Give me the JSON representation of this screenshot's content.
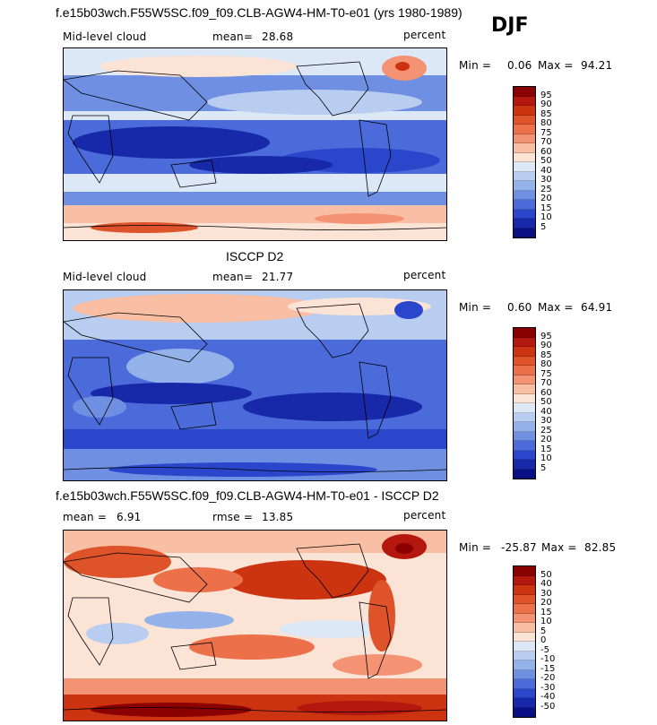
{
  "season": "DJF",
  "panels": [
    {
      "title": "f.e15b03wch.F55W5SC.f09_f09.CLB-AGW4-HM-T0-e01 (yrs 1980-1989)",
      "variable": "Mid-level cloud",
      "mean_label": "mean=",
      "mean": "28.68",
      "units": "percent",
      "min_label": "Min =",
      "min": "0.06",
      "max_label": "Max =",
      "max": "94.21"
    },
    {
      "title": "ISCCP D2",
      "variable": "Mid-level cloud",
      "mean_label": "mean=",
      "mean": "21.77",
      "units": "percent",
      "min_label": "Min =",
      "min": "0.60",
      "max_label": "Max =",
      "max": "64.91"
    },
    {
      "title": "f.e15b03wch.F55W5SC.f09_f09.CLB-AGW4-HM-T0-e01 - ISCCP D2",
      "variable": "",
      "mean_label": "mean =",
      "mean": "6.91",
      "rmse_label": "rmse =",
      "rmse": "13.85",
      "units": "percent",
      "min_label": "Min =",
      "min": "-25.87",
      "max_label": "Max =",
      "max": "82.85"
    }
  ],
  "colorbar_abs": {
    "labels": [
      "95",
      "90",
      "85",
      "80",
      "75",
      "70",
      "60",
      "50",
      "40",
      "30",
      "25",
      "20",
      "15",
      "10",
      "5"
    ],
    "colors": [
      "#8b0000",
      "#b3170d",
      "#cc3311",
      "#de5329",
      "#ec7049",
      "#f49373",
      "#f9bfa4",
      "#fbe3d6",
      "#dde8f7",
      "#b8cdf0",
      "#94b2ea",
      "#6f8fe2",
      "#4b6bdb",
      "#2a47cc",
      "#1728a8",
      "#0a0f86"
    ]
  },
  "colorbar_diff": {
    "labels": [
      "50",
      "40",
      "30",
      "20",
      "15",
      "10",
      "5",
      "0",
      "-5",
      "-10",
      "-15",
      "-20",
      "-30",
      "-40",
      "-50"
    ],
    "colors": [
      "#8b0000",
      "#b3170d",
      "#cc3311",
      "#de5329",
      "#ec7049",
      "#f49373",
      "#f9bfa4",
      "#fbe3d6",
      "#dde8f7",
      "#b8cdf0",
      "#94b2ea",
      "#6f8fe2",
      "#4b6bdb",
      "#2a47cc",
      "#1728a8",
      "#0a0f86"
    ]
  }
}
